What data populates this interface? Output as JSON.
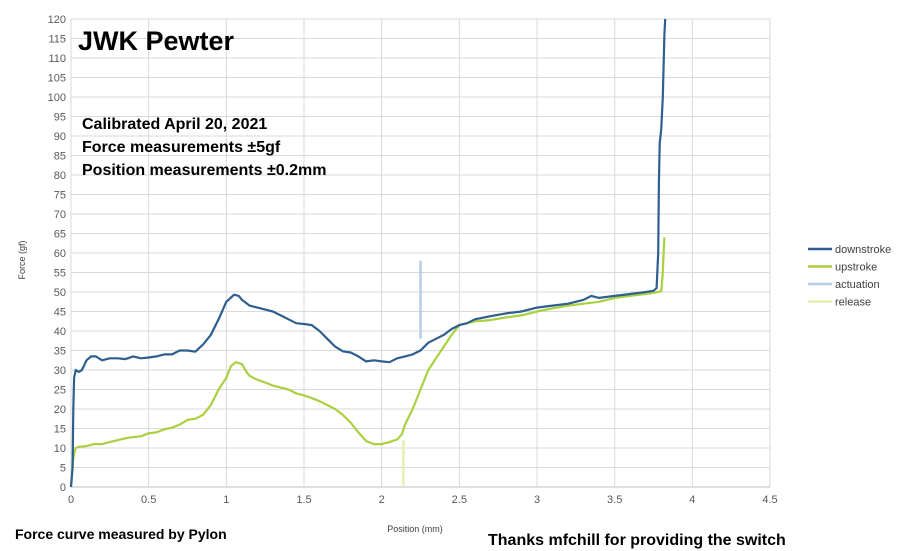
{
  "chart_data": {
    "type": "line",
    "title": "JWK Pewter",
    "annotations": [
      "Calibrated April 20, 2021",
      "Force measurements ±5gf",
      "Position measurements ±0.2mm"
    ],
    "footer_left": "Force curve measured by Pylon",
    "footer_right": "Thanks mfchill for providing the switch",
    "xlabel": "Position (mm)",
    "ylabel": "Force (gf)",
    "xlim": [
      0,
      4.5
    ],
    "ylim": [
      0,
      120
    ],
    "x_ticks": [
      "0",
      "0.5",
      "1",
      "1.5",
      "2",
      "2.5",
      "3",
      "3.5",
      "4",
      "4.5"
    ],
    "y_ticks": [
      "0",
      "5",
      "10",
      "15",
      "20",
      "25",
      "30",
      "35",
      "40",
      "45",
      "50",
      "55",
      "60",
      "65",
      "70",
      "75",
      "80",
      "85",
      "90",
      "95",
      "100",
      "105",
      "110",
      "115",
      "120"
    ],
    "grid": true,
    "legend_position": "right",
    "series": [
      {
        "name": "downstroke",
        "color": "#2e5f8f",
        "points": [
          [
            0.0,
            0
          ],
          [
            0.01,
            5
          ],
          [
            0.015,
            20
          ],
          [
            0.02,
            28
          ],
          [
            0.03,
            30
          ],
          [
            0.05,
            29.5
          ],
          [
            0.07,
            30
          ],
          [
            0.1,
            32.5
          ],
          [
            0.13,
            33.5
          ],
          [
            0.16,
            33.5
          ],
          [
            0.2,
            32.5
          ],
          [
            0.25,
            33
          ],
          [
            0.3,
            33
          ],
          [
            0.35,
            32.8
          ],
          [
            0.4,
            33.5
          ],
          [
            0.45,
            33
          ],
          [
            0.5,
            33.2
          ],
          [
            0.55,
            33.5
          ],
          [
            0.6,
            34
          ],
          [
            0.65,
            34
          ],
          [
            0.7,
            35
          ],
          [
            0.75,
            35
          ],
          [
            0.8,
            34.7
          ],
          [
            0.85,
            36.5
          ],
          [
            0.9,
            39
          ],
          [
            0.95,
            43
          ],
          [
            1.0,
            47.5
          ],
          [
            1.05,
            49.3
          ],
          [
            1.08,
            49
          ],
          [
            1.1,
            48
          ],
          [
            1.15,
            46.5
          ],
          [
            1.2,
            46
          ],
          [
            1.25,
            45.5
          ],
          [
            1.3,
            45
          ],
          [
            1.35,
            44
          ],
          [
            1.4,
            43
          ],
          [
            1.45,
            42
          ],
          [
            1.5,
            41.8
          ],
          [
            1.55,
            41.5
          ],
          [
            1.6,
            40
          ],
          [
            1.65,
            38
          ],
          [
            1.7,
            36
          ],
          [
            1.75,
            34.8
          ],
          [
            1.8,
            34.5
          ],
          [
            1.85,
            33.5
          ],
          [
            1.9,
            32.2
          ],
          [
            1.95,
            32.5
          ],
          [
            2.0,
            32.2
          ],
          [
            2.05,
            32
          ],
          [
            2.1,
            33
          ],
          [
            2.15,
            33.5
          ],
          [
            2.2,
            34
          ],
          [
            2.25,
            35
          ],
          [
            2.3,
            37
          ],
          [
            2.35,
            38
          ],
          [
            2.4,
            39
          ],
          [
            2.45,
            40.5
          ],
          [
            2.5,
            41.5
          ],
          [
            2.55,
            42
          ],
          [
            2.6,
            43
          ],
          [
            2.7,
            43.8
          ],
          [
            2.8,
            44.5
          ],
          [
            2.9,
            45
          ],
          [
            3.0,
            46
          ],
          [
            3.1,
            46.5
          ],
          [
            3.2,
            47
          ],
          [
            3.3,
            48
          ],
          [
            3.35,
            49
          ],
          [
            3.4,
            48.5
          ],
          [
            3.5,
            49
          ],
          [
            3.6,
            49.5
          ],
          [
            3.7,
            50
          ],
          [
            3.75,
            50.3
          ],
          [
            3.77,
            51
          ],
          [
            3.78,
            60
          ],
          [
            3.785,
            78
          ],
          [
            3.79,
            88
          ],
          [
            3.8,
            92
          ],
          [
            3.81,
            100
          ],
          [
            3.815,
            108
          ],
          [
            3.82,
            116
          ],
          [
            3.825,
            120
          ]
        ]
      },
      {
        "name": "upstroke",
        "color": "#a9d13f",
        "points": [
          [
            0.0,
            0
          ],
          [
            0.01,
            6
          ],
          [
            0.02,
            8.5
          ],
          [
            0.03,
            10
          ],
          [
            0.05,
            10.3
          ],
          [
            0.1,
            10.5
          ],
          [
            0.15,
            11
          ],
          [
            0.2,
            11
          ],
          [
            0.25,
            11.5
          ],
          [
            0.3,
            12
          ],
          [
            0.35,
            12.5
          ],
          [
            0.4,
            12.8
          ],
          [
            0.45,
            13
          ],
          [
            0.5,
            13.8
          ],
          [
            0.55,
            14
          ],
          [
            0.6,
            14.8
          ],
          [
            0.65,
            15.2
          ],
          [
            0.7,
            16
          ],
          [
            0.75,
            17.2
          ],
          [
            0.8,
            17.5
          ],
          [
            0.85,
            18.5
          ],
          [
            0.9,
            21
          ],
          [
            0.95,
            25
          ],
          [
            1.0,
            28
          ],
          [
            1.03,
            31
          ],
          [
            1.06,
            32
          ],
          [
            1.1,
            31.5
          ],
          [
            1.13,
            29.5
          ],
          [
            1.15,
            28.5
          ],
          [
            1.2,
            27.5
          ],
          [
            1.25,
            26.8
          ],
          [
            1.3,
            26
          ],
          [
            1.35,
            25.5
          ],
          [
            1.4,
            25
          ],
          [
            1.45,
            24
          ],
          [
            1.5,
            23.5
          ],
          [
            1.55,
            22.8
          ],
          [
            1.6,
            22
          ],
          [
            1.65,
            21
          ],
          [
            1.7,
            20
          ],
          [
            1.75,
            18.5
          ],
          [
            1.8,
            16.5
          ],
          [
            1.85,
            14
          ],
          [
            1.9,
            11.8
          ],
          [
            1.95,
            11
          ],
          [
            2.0,
            11
          ],
          [
            2.05,
            11.5
          ],
          [
            2.1,
            12.2
          ],
          [
            2.13,
            13.5
          ],
          [
            2.15,
            16
          ],
          [
            2.2,
            20
          ],
          [
            2.25,
            25
          ],
          [
            2.3,
            30
          ],
          [
            2.35,
            33
          ],
          [
            2.4,
            36
          ],
          [
            2.45,
            39
          ],
          [
            2.5,
            41.5
          ],
          [
            2.55,
            42
          ],
          [
            2.6,
            42.5
          ],
          [
            2.7,
            42.8
          ],
          [
            2.8,
            43.5
          ],
          [
            2.9,
            44
          ],
          [
            3.0,
            45
          ],
          [
            3.1,
            45.8
          ],
          [
            3.2,
            46.5
          ],
          [
            3.3,
            47
          ],
          [
            3.4,
            47.5
          ],
          [
            3.5,
            48.5
          ],
          [
            3.6,
            49
          ],
          [
            3.7,
            49.5
          ],
          [
            3.75,
            49.8
          ],
          [
            3.8,
            50.2
          ],
          [
            3.81,
            55
          ],
          [
            3.815,
            60
          ],
          [
            3.82,
            64
          ]
        ]
      },
      {
        "name": "actuation",
        "color": "#b9cde5",
        "points": [
          [
            2.25,
            38
          ],
          [
            2.25,
            58
          ]
        ]
      },
      {
        "name": "release",
        "color": "#e3f0b0",
        "points": [
          [
            2.14,
            0
          ],
          [
            2.14,
            12
          ]
        ]
      }
    ]
  }
}
